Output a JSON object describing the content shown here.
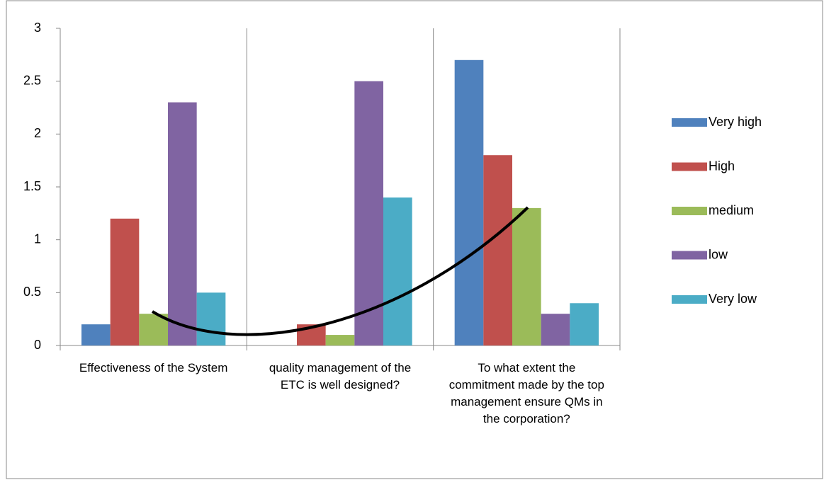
{
  "chart_data": {
    "type": "bar",
    "categories": [
      "Effectiveness of the System",
      "quality management  of the ETC is well designed?",
      "To what extent the commitment  made by the top management ensure QMs in the corporation?"
    ],
    "series": [
      {
        "name": "Very high",
        "color": "#4f81bd",
        "values": [
          0.2,
          0,
          2.7
        ]
      },
      {
        "name": "High",
        "color": "#c0504d",
        "values": [
          1.2,
          0.2,
          1.8
        ]
      },
      {
        "name": "medium",
        "color": "#9bbb59",
        "values": [
          0.3,
          0.1,
          1.3
        ]
      },
      {
        "name": "low",
        "color": "#8064a2",
        "values": [
          2.3,
          2.5,
          0.3
        ]
      },
      {
        "name": "Very low",
        "color": "#4bacc6",
        "values": [
          0.5,
          1.4,
          0.4
        ]
      }
    ],
    "ylim": [
      0,
      3
    ],
    "yticks": [
      0,
      0.5,
      1,
      1.5,
      2,
      2.5,
      3
    ],
    "legend": "right"
  }
}
